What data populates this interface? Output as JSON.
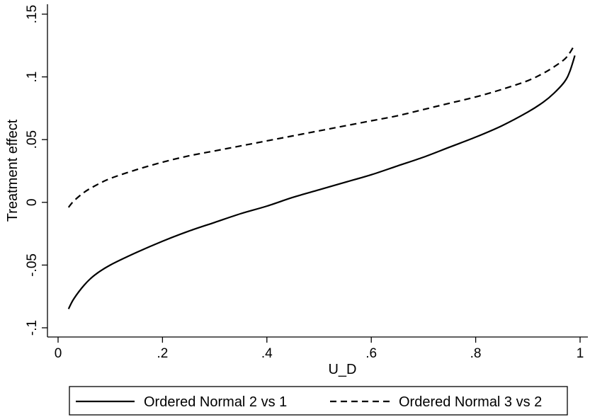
{
  "chart_data": {
    "type": "line",
    "xlabel": "U_D",
    "ylabel": "Treatment effect",
    "xlim": [
      0,
      1
    ],
    "ylim": [
      -0.1,
      0.15
    ],
    "x_ticks": [
      0,
      0.2,
      0.4,
      0.6,
      0.8,
      1
    ],
    "x_tick_labels": [
      "0",
      ".2",
      ".4",
      ".6",
      ".8",
      "1"
    ],
    "y_ticks": [
      -0.1,
      -0.05,
      0,
      0.05,
      0.1,
      0.15
    ],
    "y_tick_labels": [
      "-.1",
      "-.05",
      "0",
      ".05",
      ".1",
      ".15"
    ],
    "grid": false,
    "legend_position": "bottom",
    "series": [
      {
        "name": "Ordered Normal 2 vs 1",
        "line_style": "solid",
        "color": "#000000",
        "x": [
          0.02,
          0.03,
          0.05,
          0.07,
          0.1,
          0.15,
          0.2,
          0.25,
          0.3,
          0.35,
          0.4,
          0.45,
          0.5,
          0.55,
          0.6,
          0.65,
          0.7,
          0.75,
          0.8,
          0.85,
          0.9,
          0.93,
          0.95,
          0.97,
          0.98,
          0.99
        ],
        "y": [
          -0.085,
          -0.077,
          -0.066,
          -0.058,
          -0.05,
          -0.04,
          -0.031,
          -0.023,
          -0.016,
          -0.009,
          -0.003,
          0.004,
          0.01,
          0.016,
          0.022,
          0.029,
          0.036,
          0.044,
          0.052,
          0.061,
          0.072,
          0.08,
          0.087,
          0.096,
          0.104,
          0.117
        ]
      },
      {
        "name": "Ordered Normal 3 vs 2",
        "line_style": "dashed",
        "color": "#000000",
        "x": [
          0.02,
          0.03,
          0.05,
          0.07,
          0.1,
          0.15,
          0.2,
          0.25,
          0.3,
          0.35,
          0.4,
          0.45,
          0.5,
          0.55,
          0.6,
          0.65,
          0.7,
          0.75,
          0.8,
          0.85,
          0.9,
          0.93,
          0.95,
          0.97,
          0.98,
          0.99
        ],
        "y": [
          -0.004,
          0.001,
          0.008,
          0.013,
          0.019,
          0.026,
          0.032,
          0.037,
          0.041,
          0.045,
          0.049,
          0.053,
          0.057,
          0.061,
          0.065,
          0.069,
          0.074,
          0.079,
          0.084,
          0.09,
          0.097,
          0.103,
          0.108,
          0.114,
          0.119,
          0.126
        ]
      }
    ]
  }
}
